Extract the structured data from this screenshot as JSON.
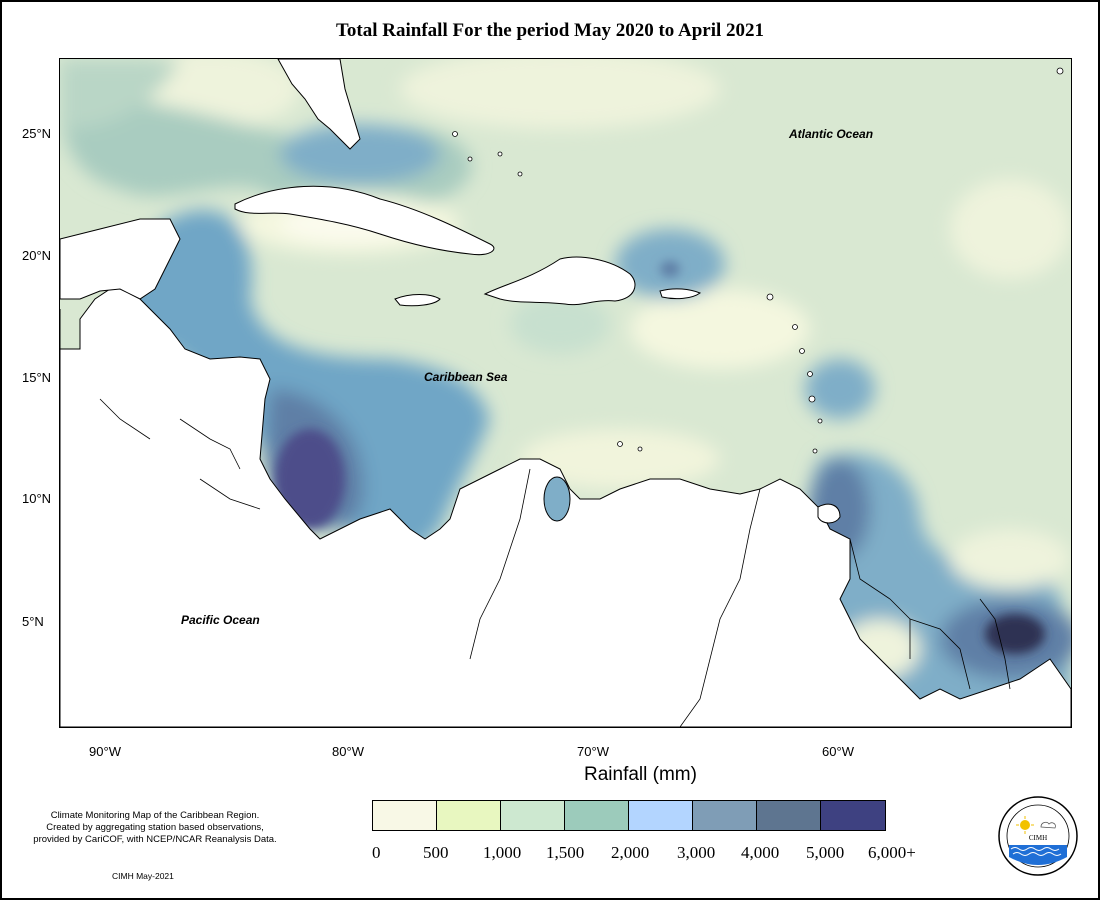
{
  "title": "Total Rainfall For the period May 2020 to April 2021",
  "map": {
    "latitude_labels": [
      "25°N",
      "20°N",
      "15°N",
      "10°N",
      "5°N"
    ],
    "longitude_labels": [
      "90°W",
      "80°W",
      "70°W",
      "60°W"
    ],
    "region_labels": {
      "atlantic": "Atlantic Ocean",
      "caribbean": "Caribbean Sea",
      "pacific": "Pacific Ocean"
    }
  },
  "legend": {
    "title": "Rainfall (mm)",
    "colors": [
      "#f8f8e6",
      "#e8f7c0",
      "#cde8d0",
      "#9ccbbb",
      "#b3d5ff",
      "#7f9db6",
      "#5e7590",
      "#3e4181"
    ],
    "ticks": [
      "0",
      "500",
      "1,000",
      "1,500",
      "2,000",
      "3,000",
      "4,000",
      "5,000",
      "6,000+"
    ]
  },
  "credit": {
    "lines": [
      "Climate Monitoring Map of the Caribbean Region.",
      "Created by aggregating station based observations,",
      "provided by CariCOF, with NCEP/NCAR Reanalysis Data."
    ],
    "stamp": "CIMH May-2021"
  },
  "logo": {
    "icon": "cimh-logo-icon",
    "text": "CIMH",
    "ring_text": "Caribbean Institute for Meteorology and Hydrology"
  }
}
